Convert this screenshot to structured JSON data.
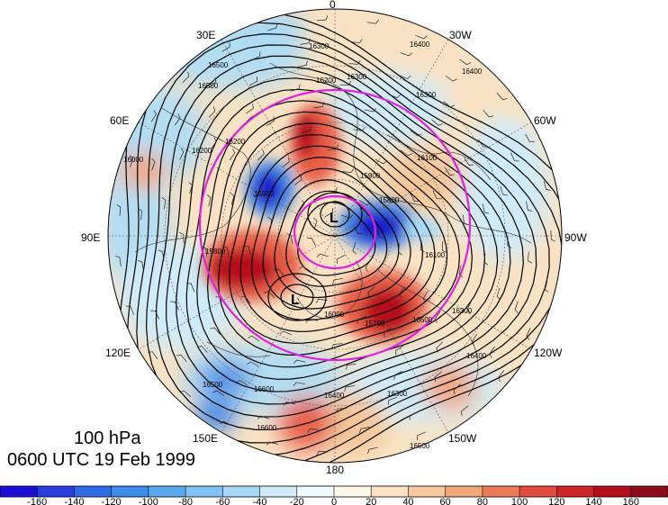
{
  "map": {
    "projection": "north-polar-stereographic",
    "level_label": "100 hPa",
    "time_label": "0600 UTC 19 Feb 1999",
    "longitude_labels": [
      "0",
      "30W",
      "60W",
      "90W",
      "120W",
      "150W",
      "180",
      "150E",
      "120E",
      "90E",
      "60E",
      "30E"
    ],
    "contour_labels": [
      "16300",
      "16400",
      "16500",
      "16300",
      "16200",
      "16500",
      "16600",
      "16400",
      "16300",
      "16100",
      "16200",
      "16000",
      "15800",
      "15900",
      "16100",
      "16300",
      "16400",
      "16500",
      "16600",
      "16500",
      "16400",
      "16300",
      "16500",
      "16200",
      "15900",
      "15800",
      "15700",
      "16000"
    ],
    "low_centers": [
      "L",
      "L"
    ],
    "fill_palette": {
      "strong_negative": "#1a1acc",
      "negative": "#4d8ee6",
      "weak_negative": "#b4ddf2",
      "neutral": "#fff6e0",
      "weak_positive": "#f4c69a",
      "positive": "#e8604a",
      "strong_positive": "#b80f1f"
    },
    "reference_circle_color": "#e020e0"
  },
  "colorbar": {
    "tick_labels": [
      "-160",
      "-140",
      "-120",
      "-100",
      "-80",
      "-60",
      "-40",
      "-20",
      "0",
      "20",
      "40",
      "60",
      "80",
      "100",
      "120",
      "140",
      "160"
    ],
    "colors": [
      "#1b0fd6",
      "#2a3ee0",
      "#2f6ce6",
      "#3e8ce8",
      "#5aa8ee",
      "#80c2f2",
      "#a8d8f4",
      "#cfeaf8",
      "#eefaff",
      "#fff8e6",
      "#fde3c3",
      "#f8c9a0",
      "#f2a67c",
      "#ec7a5a",
      "#e24c3e",
      "#cf2428",
      "#b30f1c",
      "#8e0c1a"
    ]
  }
}
